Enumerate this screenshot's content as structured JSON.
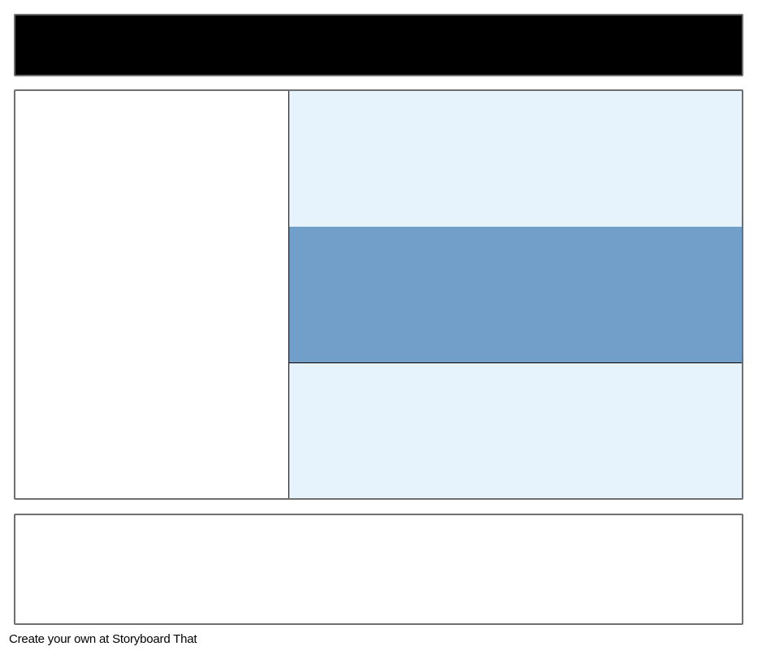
{
  "colors": {
    "title_bar": "#000000",
    "light_cell": "#e6f3fd",
    "highlight_cell": "#729fca",
    "border": "#6f6f6f"
  },
  "footer": {
    "text": "Create your own at Storyboard That"
  }
}
